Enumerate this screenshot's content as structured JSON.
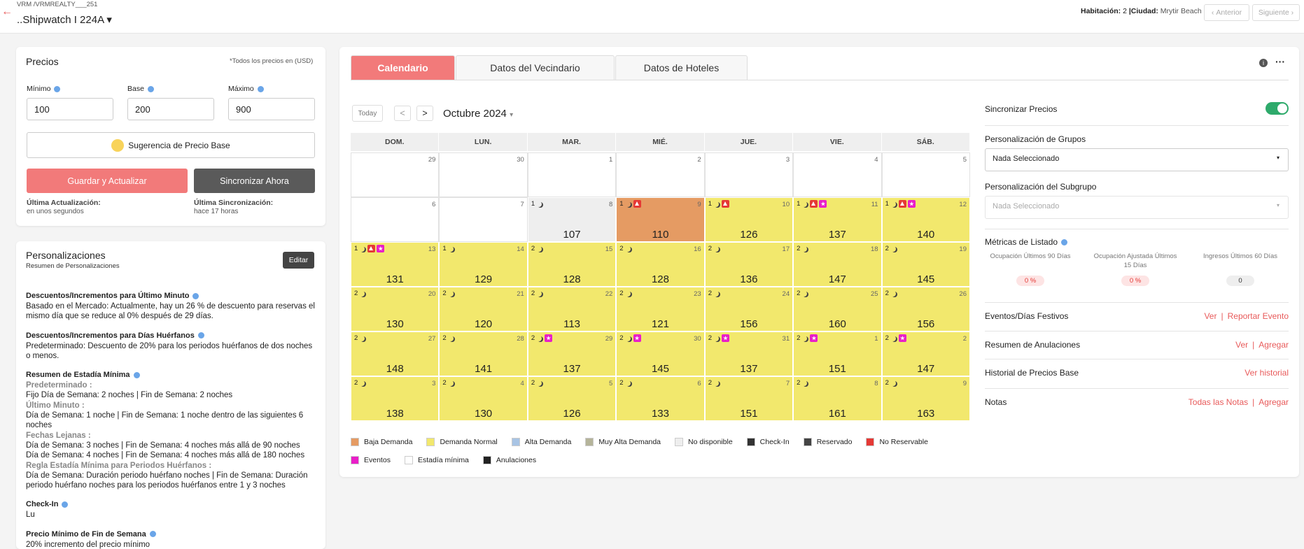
{
  "header": {
    "breadcrumb": "VRM /VRMREALTY___251",
    "property": "..Shipwatch I 224A",
    "room_label": "Habitación:",
    "room_value": "2",
    "city_label": "|Ciudad:",
    "city_value": "Mrytir Beach",
    "prev": "Anterior",
    "next": "Siguiente"
  },
  "prices": {
    "title": "Precios",
    "note": "*Todos los precios en (USD)",
    "fields": [
      {
        "label": "Mínimo",
        "value": "100"
      },
      {
        "label": "Base",
        "value": "200"
      },
      {
        "label": "Máximo",
        "value": "900"
      }
    ],
    "suggest": "Sugerencia de Precio Base",
    "save": "Guardar y Actualizar",
    "sync": "Sincronizar Ahora",
    "last_update_label": "Última Actualización:",
    "last_update": "en unos segundos",
    "last_sync_label": "Última Sincronización:",
    "last_sync": "hace 17 horas"
  },
  "customizations": {
    "title": "Personalizaciones",
    "subtitle": "Resumen de Personalizaciones",
    "edit": "Editar",
    "sections": [
      {
        "heading": "Descuentos/Incrementos para Último Minuto",
        "lines": [
          "Basado en el Mercado: Actualmente, hay un 26 % de descuento para reservas el mismo día que se reduce al 0% después de 29 días."
        ]
      },
      {
        "heading": "Descuentos/Incrementos para Días Huérfanos",
        "lines": [
          "Predeterminado: Descuento de 20% para los periodos huérfanos de dos noches o menos."
        ]
      },
      {
        "heading": "Resumen de Estadía Mínima",
        "groups": [
          {
            "label": "Predeterminado :",
            "lines": [
              "Fijo Día de Semana: 2 noches | Fin de Semana: 2 noches"
            ]
          },
          {
            "label": "Último Minuto :",
            "lines": [
              "Día de Semana: 1 noche | Fin de Semana: 1 noche dentro de las siguientes 6 noches"
            ]
          },
          {
            "label": "Fechas Lejanas :",
            "lines": [
              "Día de Semana: 3 noches | Fin de Semana: 4 noches más allá de 90 noches",
              "Día de Semana: 4 noches | Fin de Semana: 4 noches más allá de 180 noches"
            ]
          },
          {
            "label": "Regla Estadía Mínima para Periodos Huérfanos :",
            "lines": [
              "Día de Semana: Duración periodo huérfano noches | Fin de Semana: Duración periodo huérfano noches para los periodos huérfanos entre 1 y 3 noches"
            ]
          }
        ]
      },
      {
        "heading": "Check-In",
        "lines": [
          "Lu"
        ]
      },
      {
        "heading": "Precio Mínimo de Fin de Semana",
        "lines": [
          "20% incremento del precio mínimo"
        ]
      }
    ]
  },
  "calendar": {
    "tabs": [
      "Calendario",
      "Datos del Vecindario",
      "Datos de Hoteles"
    ],
    "today": "Today",
    "prev": "<",
    "next": ">",
    "month": "Octubre 2024",
    "weekdays": [
      "DOM.",
      "LUN.",
      "MAR.",
      "MIÉ.",
      "JUE.",
      "VIE.",
      "SÁB."
    ],
    "weeks": [
      [
        {
          "day": 29
        },
        {
          "day": 30
        },
        {
          "day": 1
        },
        {
          "day": 2
        },
        {
          "day": 3
        },
        {
          "day": 4
        },
        {
          "day": 5
        }
      ],
      [
        {
          "day": 6
        },
        {
          "day": 7
        },
        {
          "day": 8,
          "color": "#eeeeee",
          "min_stay": "1",
          "price": 107
        },
        {
          "day": 9,
          "color": "#e59b63",
          "min_stay": "1",
          "no_reservable": true,
          "price": 110
        },
        {
          "day": 10,
          "color": "#f2e86d",
          "min_stay": "1",
          "no_reservable": true,
          "price": 126
        },
        {
          "day": 11,
          "color": "#f2e86d",
          "min_stay": "1",
          "no_reservable": true,
          "event": true,
          "price": 137
        },
        {
          "day": 12,
          "color": "#f2e86d",
          "min_stay": "1",
          "no_reservable": true,
          "event": true,
          "price": 140
        }
      ],
      [
        {
          "day": 13,
          "color": "#f2e86d",
          "min_stay": "1",
          "no_reservable": true,
          "event": true,
          "price": 131
        },
        {
          "day": 14,
          "color": "#f2e86d",
          "min_stay": "1",
          "price": 129
        },
        {
          "day": 15,
          "color": "#f2e86d",
          "min_stay": "2",
          "price": 128
        },
        {
          "day": 16,
          "color": "#f2e86d",
          "min_stay": "2",
          "price": 128
        },
        {
          "day": 17,
          "color": "#f2e86d",
          "min_stay": "2",
          "price": 136
        },
        {
          "day": 18,
          "color": "#f2e86d",
          "min_stay": "2",
          "price": 147
        },
        {
          "day": 19,
          "color": "#f2e86d",
          "min_stay": "2",
          "price": 145
        }
      ],
      [
        {
          "day": 20,
          "color": "#f2e86d",
          "min_stay": "2",
          "price": 130
        },
        {
          "day": 21,
          "color": "#f2e86d",
          "min_stay": "2",
          "price": 120
        },
        {
          "day": 22,
          "color": "#f2e86d",
          "min_stay": "2",
          "price": 113
        },
        {
          "day": 23,
          "color": "#f2e86d",
          "min_stay": "2",
          "price": 121
        },
        {
          "day": 24,
          "color": "#f2e86d",
          "min_stay": "2",
          "price": 156
        },
        {
          "day": 25,
          "color": "#f2e86d",
          "min_stay": "2",
          "price": 160
        },
        {
          "day": 26,
          "color": "#f2e86d",
          "min_stay": "2",
          "price": 156
        }
      ],
      [
        {
          "day": 27,
          "color": "#f2e86d",
          "min_stay": "2",
          "price": 148
        },
        {
          "day": 28,
          "color": "#f2e86d",
          "min_stay": "2",
          "price": 141
        },
        {
          "day": 29,
          "color": "#f2e86d",
          "min_stay": "2",
          "event": true,
          "price": 137
        },
        {
          "day": 30,
          "color": "#f2e86d",
          "min_stay": "2",
          "event": true,
          "price": 145
        },
        {
          "day": 31,
          "color": "#f2e86d",
          "min_stay": "2",
          "event": true,
          "price": 137
        },
        {
          "day": 1,
          "color": "#f2e86d",
          "min_stay": "2",
          "event": true,
          "price": 151
        },
        {
          "day": 2,
          "color": "#f2e86d",
          "min_stay": "2",
          "event": true,
          "price": 147
        }
      ],
      [
        {
          "day": 3,
          "color": "#f2e86d",
          "min_stay": "2",
          "price": 138
        },
        {
          "day": 4,
          "color": "#f2e86d",
          "min_stay": "2",
          "price": 130
        },
        {
          "day": 5,
          "color": "#f2e86d",
          "min_stay": "2",
          "price": 126
        },
        {
          "day": 6,
          "color": "#f2e86d",
          "min_stay": "2",
          "price": 133
        },
        {
          "day": 7,
          "color": "#f2e86d",
          "min_stay": "2",
          "price": 151
        },
        {
          "day": 8,
          "color": "#f2e86d",
          "min_stay": "2",
          "price": 161
        },
        {
          "day": 9,
          "color": "#f2e86d",
          "min_stay": "2",
          "price": 163
        }
      ]
    ],
    "legend": [
      {
        "name": "Baja Demanda",
        "color": "#e59b63"
      },
      {
        "name": "Demanda Normal",
        "color": "#f2e86d"
      },
      {
        "name": "Alta Demanda",
        "color": "#a8c4e4"
      },
      {
        "name": "Muy Alta Demanda",
        "color": "#b5b49a"
      },
      {
        "name": "No disponible",
        "color": "#eeeeee"
      },
      {
        "name": "Check-In",
        "color": "#333333"
      },
      {
        "name": "Reservado",
        "color": "#444444"
      },
      {
        "name": "No Reservable",
        "color": "#e53935"
      },
      {
        "name": "Eventos",
        "color": "#e91ec8"
      },
      {
        "name": "Estadía mínima",
        "color": "#ffffff"
      },
      {
        "name": "Anulaciones",
        "color": "#222222"
      }
    ]
  },
  "sidebar": {
    "sync_label": "Sincronizar Precios",
    "sync_on": true,
    "group_label": "Personalización de Grupos",
    "group_value": "Nada Seleccionado",
    "subgroup_label": "Personalización del Subgrupo",
    "subgroup_value": "Nada Seleccionado",
    "metrics_title": "Métricas de Listado",
    "metrics": [
      {
        "label": "Ocupación Últimos 90 Días",
        "value": "0 %"
      },
      {
        "label": "Ocupación Ajustada Últimos 15 Días",
        "value": "0 %"
      },
      {
        "label": "Ingresos Últimos 60 Días",
        "value": "0"
      }
    ],
    "rows": [
      {
        "label": "Eventos/Días Festivos",
        "links": [
          "Ver",
          "Reportar Evento"
        ]
      },
      {
        "label": "Resumen de Anulaciones",
        "links": [
          "Ver",
          "Agregar"
        ]
      },
      {
        "label": "Historial de Precios Base",
        "links": [
          "Ver historial"
        ]
      },
      {
        "label": "Notas",
        "links": [
          "Todas las Notas",
          "Agregar"
        ]
      }
    ]
  }
}
